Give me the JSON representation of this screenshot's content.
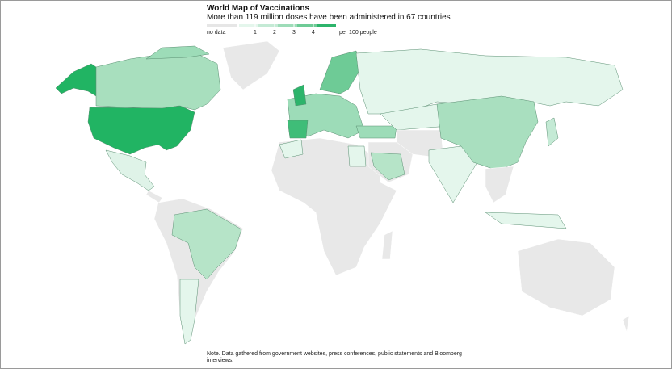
{
  "header": {
    "title": "World Map of Vaccinations",
    "subtitle": "More than 119 million doses have been administered in 67 countries"
  },
  "legend": {
    "no_data": "no data",
    "ticks": [
      1,
      2,
      3,
      4
    ],
    "unit": "per 100 people",
    "no_data_color": "#e6e6e6",
    "colors": [
      "#e4f6ec",
      "#c4ead5",
      "#9ddcb8",
      "#6ecb96",
      "#2db46b"
    ]
  },
  "note": "Note. Data gathered from government websites, press conferences, public statements and Bloomberg interviews."
}
